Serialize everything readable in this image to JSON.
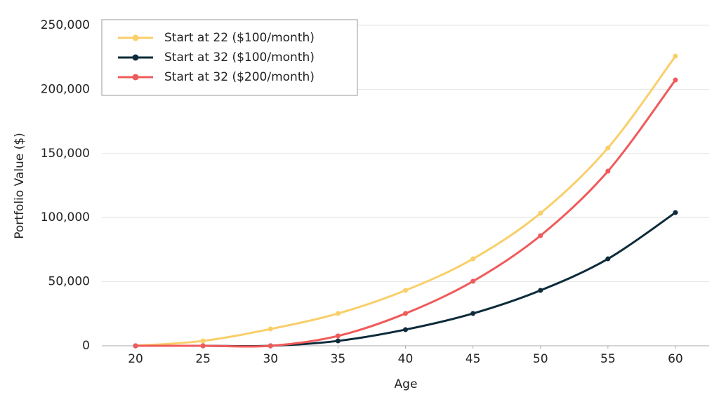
{
  "chart_data": {
    "type": "line",
    "x_label": "Age",
    "y_label": "Portfolio Value ($)",
    "x": [
      20,
      25,
      30,
      35,
      40,
      45,
      50,
      55,
      60
    ],
    "series": [
      {
        "name": "Start at 22 ($100/month)",
        "color": "#f9cf6a",
        "values": [
          0,
          3800,
          13100,
          25200,
          43200,
          67800,
          103400,
          154300,
          225900
        ]
      },
      {
        "name": "Start at 32 ($100/month)",
        "color": "#0d2b3a",
        "values": [
          0,
          0,
          0,
          3800,
          12600,
          25200,
          43200,
          67800,
          103900
        ]
      },
      {
        "name": "Start at 32 ($200/month)",
        "color": "#f05a5a",
        "values": [
          0,
          0,
          0,
          7700,
          25200,
          50300,
          85900,
          136200,
          207300
        ]
      }
    ],
    "xlim": [
      17.5,
      62.5
    ],
    "xticks": [
      20,
      25,
      30,
      35,
      40,
      45,
      50,
      55,
      60
    ],
    "ylim": [
      0,
      250000
    ],
    "yticks": [
      0,
      {
        "value": 50000,
        "label": "50,000"
      },
      {
        "value": 100000,
        "label": "100,000"
      },
      {
        "value": 150000,
        "label": "150,000"
      },
      {
        "value": 200000,
        "label": "200,000"
      },
      {
        "value": 250000,
        "label": "250,000"
      }
    ],
    "grid": true,
    "legend": "upper left"
  }
}
